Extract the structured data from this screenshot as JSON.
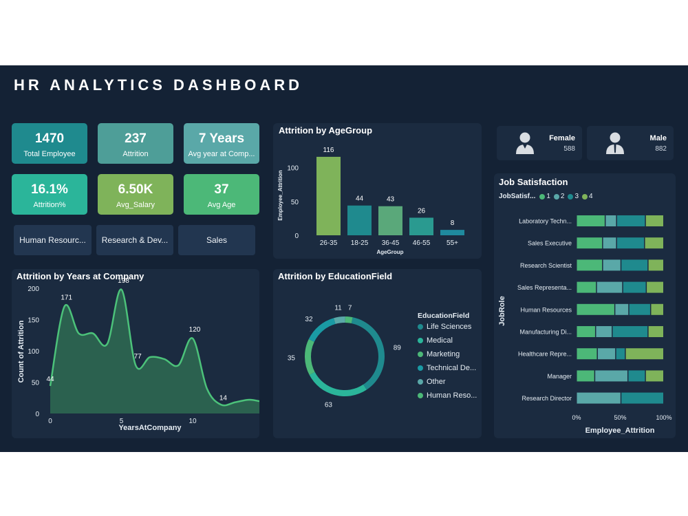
{
  "title": "HR ANALYTICS DASHBOARD",
  "kpis": [
    {
      "value": "1470",
      "label": "Total Employee",
      "color": "#1f8a8e"
    },
    {
      "value": "237",
      "label": "Attrition",
      "color": "#4e9e98"
    },
    {
      "value": "7 Years",
      "label": "Avg year at Comp...",
      "color": "#5aa8a8"
    },
    {
      "value": "16.1%",
      "label": "Attrition%",
      "color": "#2bb59a"
    },
    {
      "value": "6.50K",
      "label": "Avg_Salary",
      "color": "#7fb35a"
    },
    {
      "value": "37",
      "label": "Avg Age",
      "color": "#4cb878"
    }
  ],
  "departments": [
    "Human Resourc...",
    "Research & Dev...",
    "Sales"
  ],
  "gender": {
    "female": {
      "label": "Female",
      "value": "588"
    },
    "male": {
      "label": "Male",
      "value": "882"
    }
  },
  "colors": {
    "accent_green": "#7fb35a",
    "teal": "#1f8a8e",
    "mid_green": "#4cb878",
    "light_teal": "#5aa8a8"
  },
  "charts": {
    "age": {
      "title": "Attrition by AgeGroup"
    },
    "years": {
      "title": "Attrition by Years at Company"
    },
    "edu": {
      "title": "Attrition by EducationField",
      "legend_title": "EducationField"
    },
    "job": {
      "title": "Job Satisfaction",
      "legend_title": "JobSatisf...",
      "legend_items": [
        "1",
        "2",
        "3",
        "4"
      ]
    }
  },
  "chart_data": [
    {
      "type": "bar",
      "title": "Attrition by AgeGroup",
      "xlabel": "AgeGroup",
      "ylabel": "Employee_Attrition",
      "categories": [
        "26-35",
        "18-25",
        "36-45",
        "46-55",
        "55+"
      ],
      "values": [
        116,
        44,
        43,
        26,
        8
      ],
      "ylim": [
        0,
        120
      ],
      "yticks": [
        0,
        50,
        100
      ],
      "bar_colors": [
        "#7fb35a",
        "#1f8a8e",
        "#5aa87a",
        "#2a9a90",
        "#1f8a9e"
      ]
    },
    {
      "type": "area",
      "title": "Attrition by Years at Company",
      "xlabel": "YearsAtCompany",
      "ylabel": "Count of Attrition",
      "x": [
        0,
        1,
        2,
        3,
        4,
        5,
        6,
        7,
        8,
        9,
        10,
        11,
        12,
        13,
        14,
        15
      ],
      "y": [
        44,
        171,
        128,
        128,
        111,
        198,
        77,
        90,
        87,
        77,
        120,
        40,
        14,
        18,
        22,
        18
      ],
      "labeled_points": [
        {
          "x": 0,
          "y": 44,
          "text": "44"
        },
        {
          "x": 1,
          "y": 171,
          "text": "171"
        },
        {
          "x": 5,
          "y": 198,
          "text": "198"
        },
        {
          "x": 6,
          "y": 77,
          "text": "77"
        },
        {
          "x": 10,
          "y": 120,
          "text": "120"
        },
        {
          "x": 12,
          "y": 14,
          "text": "14"
        },
        {
          "x": 15,
          "y": 18,
          "text": "18"
        }
      ],
      "ylim": [
        0,
        200
      ],
      "yticks": [
        0,
        50,
        100,
        150,
        200
      ],
      "xticks": [
        0,
        5,
        10
      ]
    },
    {
      "type": "pie",
      "title": "Attrition by EducationField",
      "legend_title": "EducationField",
      "labels": [
        "Life Sciences",
        "Medical",
        "Marketing",
        "Technical De...",
        "Other",
        "Human Reso..."
      ],
      "values": [
        89,
        63,
        35,
        32,
        11,
        7
      ],
      "colors": [
        "#1f8a8e",
        "#2bb59a",
        "#4cb878",
        "#1a9aa4",
        "#5aa8a8",
        "#4cb878"
      ]
    },
    {
      "type": "bar",
      "title": "Job Satisfaction",
      "orientation": "horizontal-stacked-percent",
      "xlabel": "Employee_Attrition",
      "ylabel": "JobRole",
      "legend_title": "JobSatisf...",
      "series_names": [
        "1",
        "2",
        "3",
        "4"
      ],
      "series_colors": [
        "#4cb878",
        "#5aa8a8",
        "#1f8a8e",
        "#7fb35a"
      ],
      "categories": [
        "Laboratory Techn...",
        "Sales Executive",
        "Research Scientist",
        "Sales Representa...",
        "Human Resources",
        "Manufacturing Di...",
        "Healthcare Repre...",
        "Manager",
        "Research Director"
      ],
      "percent_values": [
        [
          33,
          13,
          33,
          21
        ],
        [
          30,
          16,
          32,
          22
        ],
        [
          30,
          21,
          31,
          18
        ],
        [
          23,
          30,
          27,
          20
        ],
        [
          44,
          16,
          25,
          15
        ],
        [
          22,
          19,
          41,
          18
        ],
        [
          24,
          21,
          11,
          44
        ],
        [
          21,
          38,
          20,
          21
        ],
        [
          0,
          51,
          49,
          0
        ]
      ],
      "xticks": [
        "0%",
        "50%",
        "100%"
      ]
    }
  ]
}
